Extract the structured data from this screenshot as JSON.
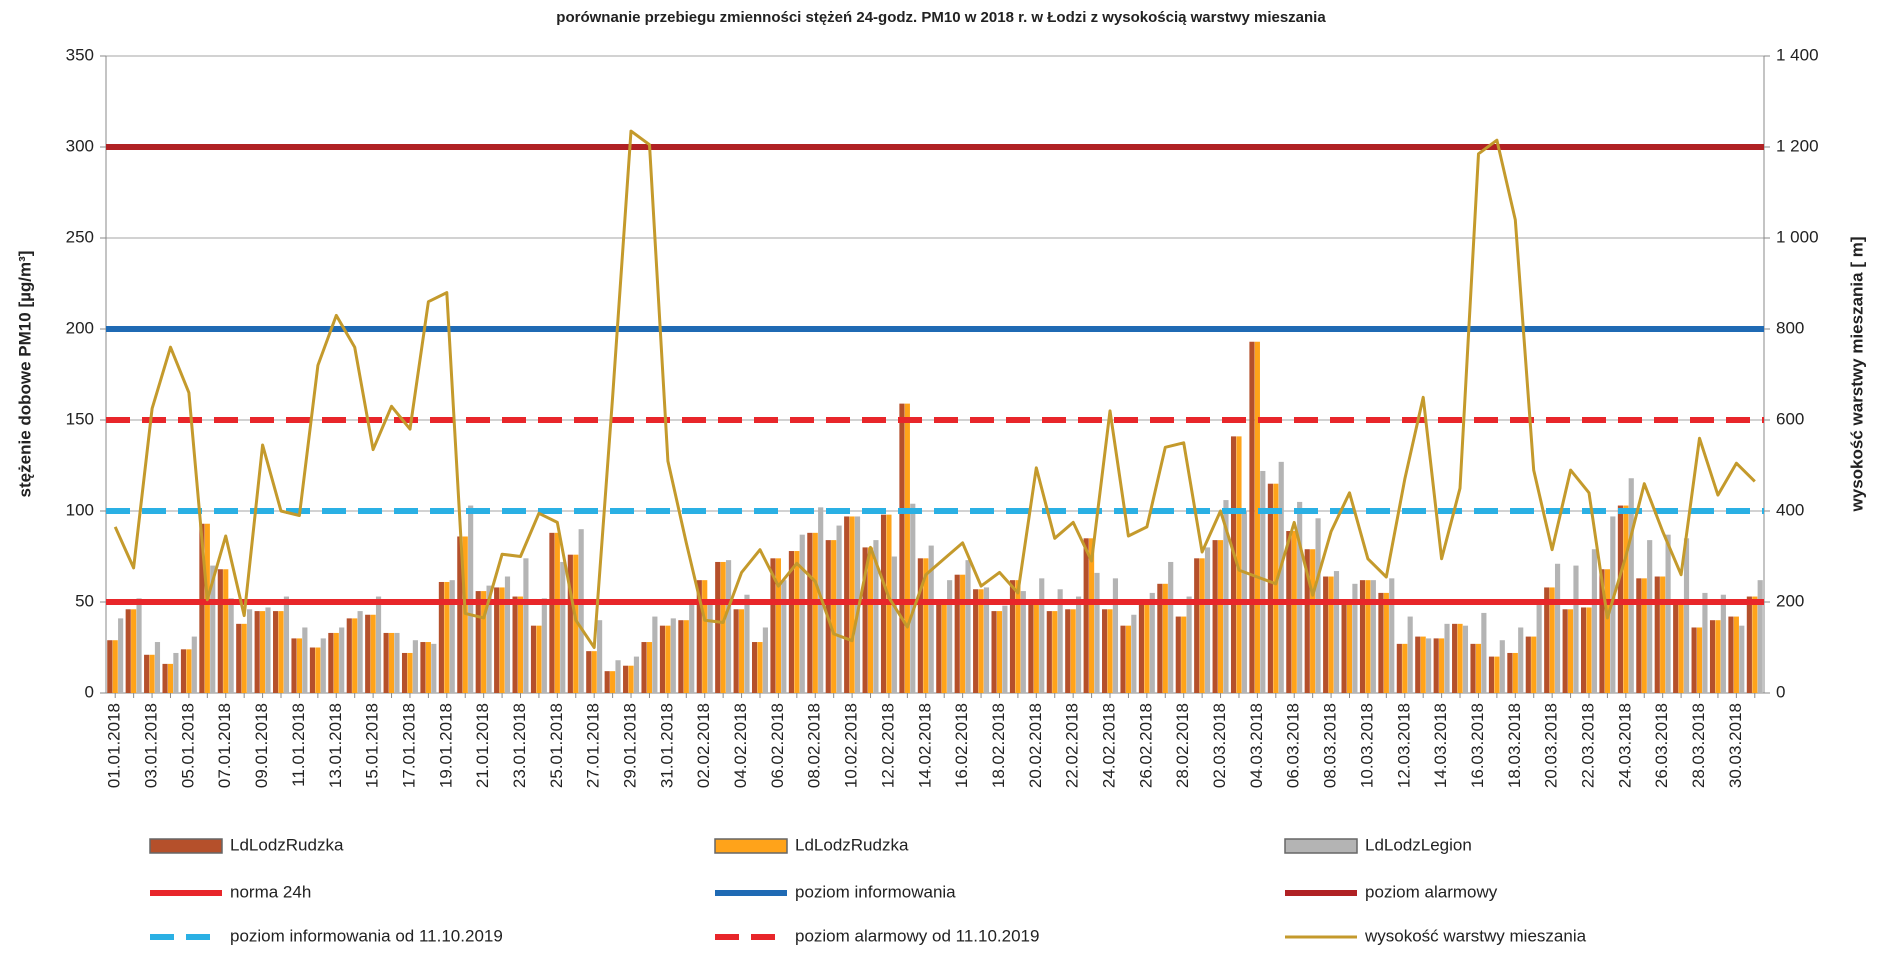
{
  "chart_data": {
    "type": "bar",
    "title": "porównanie przebiegu zmienności stężeń 24-godz. PM10 w 2018 r. w Łodzi z wysokością warstwy mieszania",
    "y_label": "stężenie dobowe PM10 [µg/m³]",
    "y2_label": "wysokość warstwy mieszania [ m]",
    "categories": [
      "01.01.2018",
      null,
      "03.01.2018",
      null,
      "05.01.2018",
      null,
      "07.01.2018",
      null,
      "09.01.2018",
      null,
      "11.01.2018",
      null,
      "13.01.2018",
      null,
      "15.01.2018",
      null,
      "17.01.2018",
      null,
      "19.01.2018",
      null,
      "21.01.2018",
      null,
      "23.01.2018",
      null,
      "25.01.2018",
      null,
      "27.01.2018",
      null,
      "29.01.2018",
      null,
      "31.01.2018",
      null,
      "02.02.2018",
      null,
      "04.02.2018",
      null,
      "06.02.2018",
      null,
      "08.02.2018",
      null,
      "10.02.2018",
      null,
      "12.02.2018",
      null,
      "14.02.2018",
      null,
      "16.02.2018",
      null,
      "18.02.2018",
      null,
      "20.02.2018",
      null,
      "22.02.2018",
      null,
      "24.02.2018",
      null,
      "26.02.2018",
      null,
      "28.02.2018",
      null,
      "02.03.2018",
      null,
      "04.03.2018",
      null,
      "06.03.2018",
      null,
      "08.03.2018",
      null,
      "10.03.2018",
      null,
      "12.03.2018",
      null,
      "14.03.2018",
      null,
      "16.03.2018",
      null,
      "18.03.2018",
      null,
      "20.03.2018",
      null,
      "22.03.2018",
      null,
      "24.03.2018",
      null,
      "26.03.2018",
      null,
      "28.03.2018",
      null,
      "30.03.2018",
      null
    ],
    "series": [
      {
        "name": "LdLodzRudzka",
        "type": "bar",
        "color": "#b5502b",
        "values": [
          29,
          46,
          21,
          16,
          24,
          93,
          68,
          38,
          45,
          45,
          30,
          25,
          33,
          41,
          43,
          33,
          22,
          28,
          61,
          86,
          56,
          58,
          53,
          37,
          88,
          76,
          23,
          12,
          15,
          28,
          37,
          40,
          62,
          72,
          46,
          28,
          74,
          78,
          88,
          84,
          97,
          80,
          98,
          159,
          74,
          50,
          65,
          57,
          45,
          62,
          50,
          45,
          46,
          85,
          46,
          37,
          50,
          60,
          42,
          74,
          84,
          141,
          193,
          115,
          89,
          79,
          64,
          50,
          62,
          55,
          27,
          31,
          30,
          38,
          27,
          20,
          22,
          31,
          58,
          46,
          47,
          68,
          103,
          63,
          64,
          50,
          36,
          40,
          42,
          53
        ]
      },
      {
        "name": "LdLodzRudzka",
        "type": "bar",
        "color": "#ffa31a",
        "values": [
          29,
          46,
          21,
          16,
          24,
          93,
          68,
          38,
          45,
          45,
          30,
          25,
          33,
          41,
          43,
          33,
          22,
          28,
          61,
          86,
          56,
          58,
          53,
          37,
          88,
          76,
          23,
          12,
          15,
          28,
          37,
          40,
          62,
          72,
          46,
          28,
          74,
          78,
          88,
          84,
          97,
          80,
          98,
          159,
          74,
          50,
          65,
          57,
          45,
          62,
          50,
          45,
          46,
          85,
          46,
          37,
          50,
          60,
          42,
          74,
          84,
          141,
          193,
          115,
          89,
          79,
          64,
          50,
          62,
          55,
          27,
          31,
          30,
          38,
          27,
          20,
          22,
          31,
          58,
          46,
          47,
          68,
          103,
          63,
          64,
          50,
          36,
          40,
          42,
          53
        ]
      },
      {
        "name": "LdLodzLegion",
        "type": "bar",
        "color": "#b4b4b4",
        "values": [
          41,
          52,
          28,
          22,
          31,
          70,
          52,
          46,
          47,
          53,
          36,
          30,
          36,
          45,
          53,
          33,
          29,
          27,
          62,
          103,
          59,
          64,
          74,
          52,
          72,
          90,
          40,
          18,
          20,
          42,
          41,
          50,
          50,
          73,
          54,
          36,
          62,
          87,
          102,
          92,
          97,
          84,
          75,
          104,
          81,
          62,
          73,
          58,
          48,
          56,
          63,
          57,
          53,
          66,
          63,
          43,
          55,
          72,
          53,
          80,
          106,
          100,
          122,
          127,
          105,
          96,
          67,
          60,
          62,
          63,
          42,
          30,
          38,
          37,
          44,
          29,
          36,
          49,
          71,
          70,
          79,
          97,
          118,
          84,
          87,
          85,
          55,
          54,
          37,
          62
        ]
      },
      {
        "name": "wysokość warstwy mieszania",
        "type": "line",
        "axis": "y2",
        "color": "#c49a2c",
        "values": [
          365,
          275,
          625,
          760,
          660,
          205,
          345,
          170,
          545,
          400,
          390,
          720,
          830,
          760,
          535,
          630,
          580,
          860,
          880,
          175,
          165,
          305,
          300,
          395,
          375,
          160,
          100,
          650,
          1235,
          1205,
          510,
          330,
          160,
          155,
          265,
          315,
          235,
          285,
          245,
          130,
          115,
          320,
          210,
          145,
          260,
          295,
          330,
          235,
          265,
          220,
          495,
          340,
          375,
          290,
          620,
          345,
          365,
          540,
          550,
          310,
          400,
          270,
          255,
          240,
          375,
          215,
          355,
          440,
          295,
          255,
          470,
          650,
          295,
          450,
          1185,
          1215,
          1040,
          490,
          315,
          490,
          440,
          165,
          300,
          460,
          355,
          260,
          560,
          435,
          505,
          465
        ]
      }
    ],
    "reference_lines": [
      {
        "name": "norma 24h",
        "value": 50,
        "color": "#e8262a",
        "dashed": false
      },
      {
        "name": "poziom informowania",
        "value": 200,
        "color": "#1f6ab4",
        "dashed": false
      },
      {
        "name": "poziom alarmowy",
        "value": 300,
        "color": "#b02124",
        "dashed": false
      },
      {
        "name": "poziom informowania od 11.10.2019",
        "value": 100,
        "color": "#2ab0e4",
        "dashed": true
      },
      {
        "name": "poziom alarmowy od 11.10.2019",
        "value": 150,
        "color": "#e8262a",
        "dashed": true
      }
    ],
    "ylim": [
      0,
      350
    ],
    "yticks": [
      0,
      50,
      100,
      150,
      200,
      250,
      300,
      350
    ],
    "y2lim": [
      0,
      1400
    ],
    "y2ticks": [
      0,
      200,
      400,
      600,
      800,
      {
        "value": 1000,
        "label": "1 000"
      },
      {
        "value": 1200,
        "label": "1 200"
      },
      {
        "value": 1400,
        "label": "1 400"
      }
    ],
    "grid": true
  }
}
